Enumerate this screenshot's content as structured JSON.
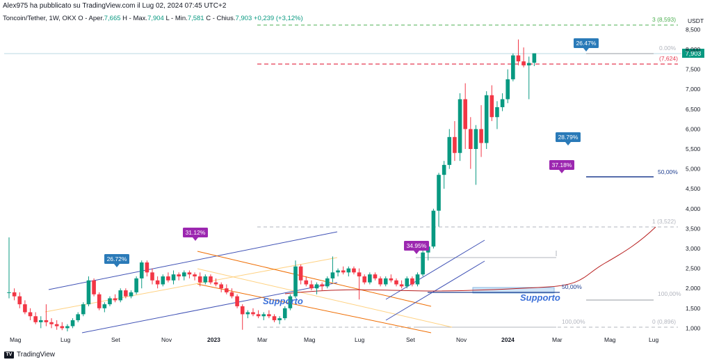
{
  "header": {
    "published": "Alex975 ha pubblicato su TradingView.com il Lug 02, 2024 07:45 UTC+2",
    "symbol": "Toncoin/Tether, 1W, OKX",
    "open_label": "O - Aper.",
    "open_value": "7,665",
    "high_label": "H - Max.",
    "high_value": "7,904",
    "low_label": "L - Min.",
    "low_value": "7,581",
    "close_label": "C - Chius.",
    "close_value": "7,903",
    "change": "+0,239 (+3,12%)"
  },
  "footer": {
    "brand": "TradingView",
    "logo": "TV"
  },
  "colors": {
    "up": "#089981",
    "down": "#f23645",
    "blue_label": "#2a7ab8",
    "purple_label": "#9c27b0"
  },
  "chart_data": {
    "type": "candlestick",
    "price_unit": "USDT",
    "y_ticks": [
      "8,500",
      "8,000",
      "7,500",
      "7,000",
      "6,500",
      "6,000",
      "5,500",
      "5,000",
      "4,500",
      "4,000",
      "3,500",
      "3,000",
      "2,500",
      "2,000",
      "1,500",
      "1,000"
    ],
    "x_ticks": [
      "Mag",
      "Lug",
      "Set",
      "Nov",
      "2023",
      "Mar",
      "Mag",
      "Lug",
      "Set",
      "Nov",
      "2024",
      "Mar",
      "Mag",
      "Lug"
    ],
    "last_price": "7,903",
    "candles": [
      [
        1.9,
        3.28,
        1.75,
        1.9
      ],
      [
        1.9,
        2.0,
        1.7,
        1.8
      ],
      [
        1.8,
        1.9,
        1.5,
        1.6
      ],
      [
        1.6,
        1.7,
        1.35,
        1.4
      ],
      [
        1.4,
        1.5,
        1.2,
        1.3
      ],
      [
        1.3,
        1.4,
        1.1,
        1.15
      ],
      [
        1.15,
        1.3,
        1.0,
        1.2
      ],
      [
        1.2,
        1.6,
        1.05,
        1.15
      ],
      [
        1.15,
        1.25,
        1.0,
        1.1
      ],
      [
        1.1,
        1.2,
        0.96,
        1.05
      ],
      [
        1.05,
        1.15,
        0.95,
        1.0
      ],
      [
        1.0,
        1.1,
        0.92,
        1.05
      ],
      [
        1.05,
        1.25,
        1.0,
        1.2
      ],
      [
        1.2,
        1.4,
        1.15,
        1.35
      ],
      [
        1.35,
        1.65,
        1.3,
        1.6
      ],
      [
        1.6,
        2.3,
        1.55,
        2.2
      ],
      [
        2.2,
        2.25,
        1.8,
        1.85
      ],
      [
        1.85,
        1.9,
        1.45,
        1.5
      ],
      [
        1.5,
        1.65,
        1.4,
        1.6
      ],
      [
        1.6,
        1.8,
        1.55,
        1.75
      ],
      [
        1.75,
        1.85,
        1.65,
        1.7
      ],
      [
        1.7,
        2.0,
        1.65,
        1.95
      ],
      [
        1.95,
        2.0,
        1.75,
        1.8
      ],
      [
        1.8,
        1.95,
        1.75,
        1.9
      ],
      [
        1.9,
        2.3,
        1.85,
        2.25
      ],
      [
        2.25,
        2.7,
        2.0,
        2.65
      ],
      [
        2.65,
        2.7,
        2.3,
        2.4
      ],
      [
        2.4,
        2.5,
        2.1,
        2.2
      ],
      [
        2.2,
        2.3,
        2.0,
        2.1
      ],
      [
        2.1,
        2.35,
        2.05,
        2.3
      ],
      [
        2.3,
        2.4,
        2.15,
        2.2
      ],
      [
        2.2,
        2.45,
        2.1,
        2.35
      ],
      [
        2.35,
        2.4,
        2.2,
        2.3
      ],
      [
        2.3,
        2.45,
        2.2,
        2.4
      ],
      [
        2.4,
        2.45,
        2.25,
        2.35
      ],
      [
        2.35,
        2.4,
        2.2,
        2.3
      ],
      [
        2.3,
        2.4,
        2.05,
        2.15
      ],
      [
        2.15,
        2.35,
        2.1,
        2.3
      ],
      [
        2.3,
        2.35,
        2.1,
        2.15
      ],
      [
        2.15,
        2.25,
        2.05,
        2.1
      ],
      [
        2.1,
        2.15,
        1.9,
        2.0
      ],
      [
        2.0,
        2.1,
        1.85,
        1.9
      ],
      [
        1.9,
        2.0,
        1.75,
        1.8
      ],
      [
        1.8,
        1.85,
        1.5,
        1.55
      ],
      [
        1.55,
        1.6,
        0.96,
        1.35
      ],
      [
        1.35,
        1.45,
        1.25,
        1.4
      ],
      [
        1.4,
        1.5,
        1.3,
        1.35
      ],
      [
        1.35,
        1.45,
        1.25,
        1.3
      ],
      [
        1.3,
        1.4,
        1.2,
        1.35
      ],
      [
        1.35,
        1.45,
        1.25,
        1.3
      ],
      [
        1.3,
        1.35,
        1.15,
        1.2
      ],
      [
        1.2,
        1.3,
        1.1,
        1.25
      ],
      [
        1.25,
        1.55,
        1.2,
        1.5
      ],
      [
        1.5,
        1.85,
        1.45,
        1.8
      ],
      [
        1.8,
        2.7,
        1.75,
        2.55
      ],
      [
        2.55,
        2.6,
        2.1,
        2.2
      ],
      [
        2.2,
        2.3,
        2.05,
        2.1
      ],
      [
        2.1,
        2.2,
        1.95,
        2.0
      ],
      [
        2.0,
        2.15,
        1.85,
        2.1
      ],
      [
        2.1,
        2.15,
        1.95,
        2.05
      ],
      [
        2.05,
        2.3,
        2.0,
        2.25
      ],
      [
        2.25,
        2.8,
        2.15,
        2.4
      ],
      [
        2.4,
        2.5,
        2.3,
        2.45
      ],
      [
        2.45,
        2.55,
        2.35,
        2.4
      ],
      [
        2.4,
        2.55,
        2.3,
        2.5
      ],
      [
        2.5,
        2.55,
        2.35,
        2.4
      ],
      [
        2.4,
        2.5,
        1.72,
        2.3
      ],
      [
        2.3,
        2.35,
        2.1,
        2.15
      ],
      [
        2.15,
        2.4,
        2.1,
        2.35
      ],
      [
        2.35,
        2.4,
        2.2,
        2.25
      ],
      [
        2.25,
        2.3,
        2.05,
        2.1
      ],
      [
        2.1,
        2.3,
        2.05,
        2.25
      ],
      [
        2.25,
        2.35,
        2.15,
        2.2
      ],
      [
        2.2,
        2.25,
        2.05,
        2.1
      ],
      [
        2.1,
        2.2,
        2.0,
        2.05
      ],
      [
        2.05,
        2.3,
        2.0,
        2.25
      ],
      [
        2.25,
        2.3,
        2.05,
        2.1
      ],
      [
        2.1,
        2.4,
        2.05,
        2.35
      ],
      [
        2.35,
        2.95,
        2.3,
        2.9
      ],
      [
        2.9,
        3.1,
        2.7,
        3.05
      ],
      [
        3.05,
        4.0,
        3.0,
        3.95
      ],
      [
        3.95,
        4.9,
        3.55,
        4.85
      ],
      [
        4.85,
        5.2,
        4.5,
        5.1
      ],
      [
        5.1,
        6.0,
        5.0,
        5.8
      ],
      [
        5.8,
        6.2,
        5.2,
        5.4
      ],
      [
        5.4,
        6.9,
        5.2,
        6.75
      ],
      [
        6.75,
        7.15,
        5.5,
        6.0
      ],
      [
        6.0,
        6.3,
        5.0,
        5.5
      ],
      [
        5.5,
        6.1,
        4.6,
        6.0
      ],
      [
        6.0,
        6.6,
        5.3,
        5.65
      ],
      [
        5.65,
        6.95,
        5.5,
        6.85
      ],
      [
        6.85,
        7.1,
        6.2,
        6.3
      ],
      [
        6.3,
        6.7,
        6.0,
        6.55
      ],
      [
        6.55,
        6.9,
        6.45,
        6.75
      ],
      [
        6.75,
        7.5,
        6.65,
        7.25
      ],
      [
        7.25,
        7.9,
        7.2,
        7.85
      ],
      [
        7.85,
        8.25,
        7.6,
        7.7
      ],
      [
        7.7,
        8.05,
        7.55,
        7.6
      ],
      [
        7.6,
        7.82,
        6.75,
        7.66
      ],
      [
        7.665,
        7.904,
        7.581,
        7.903
      ]
    ],
    "trend_labels": [
      "26.72%",
      "31.12%",
      "34.95%",
      "37.18%",
      "28.79%",
      "26.47%"
    ],
    "text_annotations": [
      "Supporto",
      "Supporto"
    ],
    "fib_labels": [
      "3 (8,593)",
      "0.00%",
      "(7,624)",
      "50,00%",
      "1 (3,522)",
      "100,00%",
      "0 (0,896)",
      "50,00%",
      "100,00%"
    ]
  }
}
